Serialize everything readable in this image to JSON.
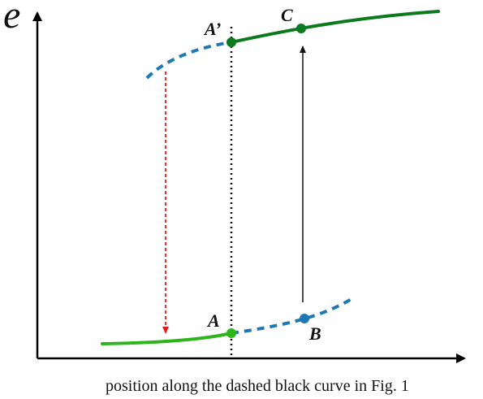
{
  "diagram": {
    "y_axis_symbol": "e",
    "x_axis_label": "position along the dashed black curve in Fig. 1",
    "points": {
      "A": "A",
      "A_prime": "A’",
      "B": "B",
      "C": "C"
    },
    "colors": {
      "upper_branch": "#0b7a1e",
      "lower_branch": "#2db51c",
      "unstable_branch": "#1e78b4",
      "drop_arrow": "#e21b1b",
      "jump_arrow": "#111111",
      "vertical_guide": "#111111"
    }
  }
}
